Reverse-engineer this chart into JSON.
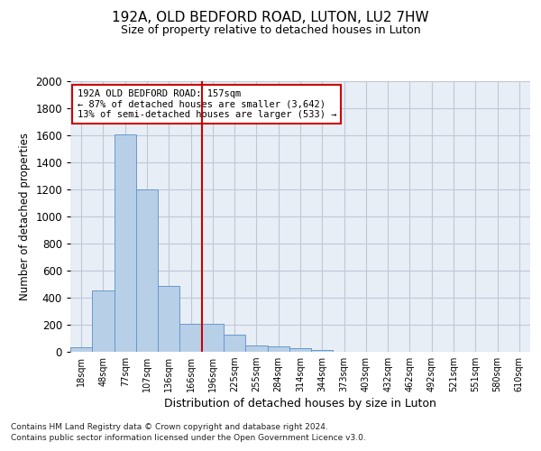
{
  "title1": "192A, OLD BEDFORD ROAD, LUTON, LU2 7HW",
  "title2": "Size of property relative to detached houses in Luton",
  "xlabel": "Distribution of detached houses by size in Luton",
  "ylabel": "Number of detached properties",
  "categories": [
    "18sqm",
    "48sqm",
    "77sqm",
    "107sqm",
    "136sqm",
    "166sqm",
    "196sqm",
    "225sqm",
    "255sqm",
    "284sqm",
    "314sqm",
    "344sqm",
    "373sqm",
    "403sqm",
    "432sqm",
    "462sqm",
    "492sqm",
    "521sqm",
    "551sqm",
    "580sqm",
    "610sqm"
  ],
  "values": [
    35,
    455,
    1610,
    1200,
    490,
    210,
    210,
    130,
    50,
    40,
    25,
    15,
    0,
    0,
    0,
    0,
    0,
    0,
    0,
    0,
    0
  ],
  "bar_color": "#b8cfe8",
  "bar_edge_color": "#6699cc",
  "vline_x_index": 5.5,
  "vline_color": "#cc0000",
  "annotation_title": "192A OLD BEDFORD ROAD: 157sqm",
  "annotation_line1": "← 87% of detached houses are smaller (3,642)",
  "annotation_line2": "13% of semi-detached houses are larger (533) →",
  "annotation_box_color": "#cc0000",
  "footnote1": "Contains HM Land Registry data © Crown copyright and database right 2024.",
  "footnote2": "Contains public sector information licensed under the Open Government Licence v3.0.",
  "ylim": [
    0,
    2000
  ],
  "yticks": [
    0,
    200,
    400,
    600,
    800,
    1000,
    1200,
    1400,
    1600,
    1800,
    2000
  ],
  "background_color": "#ffffff",
  "axes_background": "#e8eef5",
  "grid_color": "#c0c8d8"
}
